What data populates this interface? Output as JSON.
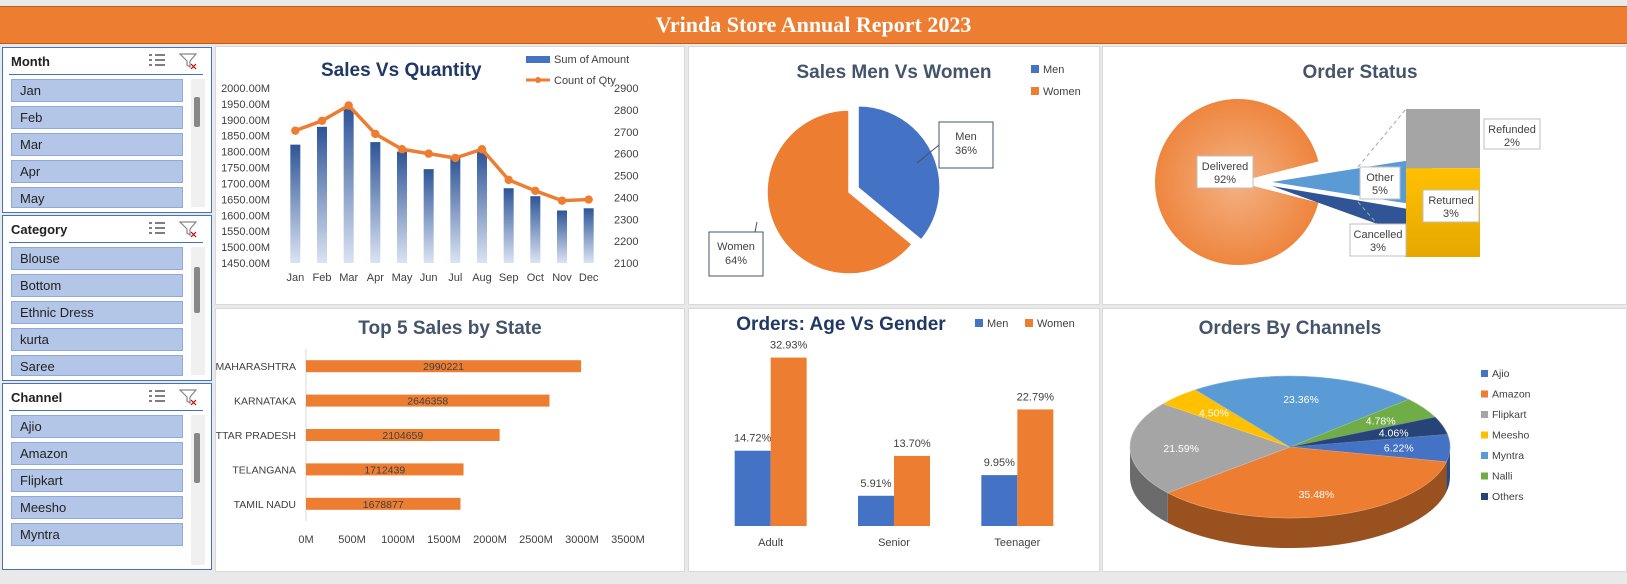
{
  "banner": {
    "title": "Vrinda Store Annual Report 2023"
  },
  "slicers": {
    "month": {
      "title": "Month",
      "items": [
        "Jan",
        "Feb",
        "Mar",
        "Apr",
        "May"
      ]
    },
    "category": {
      "title": "Category",
      "items": [
        "Blouse",
        "Bottom",
        "Ethnic Dress",
        "kurta",
        "Saree"
      ]
    },
    "channel": {
      "title": "Channel",
      "items": [
        "Ajio",
        "Amazon",
        "Flipkart",
        "Meesho",
        "Myntra"
      ]
    }
  },
  "charts": {
    "sales_qty": {
      "title": "Sales Vs Quantity",
      "legend": [
        "Sum of Amount",
        "Count of Qty"
      ]
    },
    "men_women": {
      "title": "Sales Men Vs Women",
      "legend": [
        "Men",
        "Women"
      ]
    },
    "order_status": {
      "title": "Order Status"
    },
    "top_states": {
      "title": "Top 5 Sales by State"
    },
    "age_gender": {
      "title": "Orders: Age Vs Gender",
      "legend": [
        "Men",
        "Women"
      ]
    },
    "channels": {
      "title": "Orders By Channels"
    }
  },
  "colors": {
    "blue": "#4472c4",
    "orange": "#ed7d31",
    "gray": "#a5a5a5",
    "gold": "#ffc000",
    "lightblue": "#5b9bd5",
    "green": "#70ad47",
    "navy": "#264478"
  },
  "chart_data": [
    {
      "type": "bar+line",
      "title": "Sales Vs Quantity",
      "categories": [
        "Jan",
        "Feb",
        "Mar",
        "Apr",
        "May",
        "Jun",
        "Jul",
        "Aug",
        "Sep",
        "Oct",
        "Nov",
        "Dec"
      ],
      "series": [
        {
          "name": "Sum of Amount",
          "type": "bar",
          "axis": "left",
          "values": [
            1822,
            1878,
            1935,
            1830,
            1800,
            1745,
            1780,
            1800,
            1685,
            1660,
            1615,
            1622
          ]
        },
        {
          "name": "Count of Qty",
          "type": "line",
          "axis": "right",
          "values": [
            2705,
            2750,
            2820,
            2690,
            2620,
            2600,
            2580,
            2620,
            2480,
            2430,
            2385,
            2390
          ]
        }
      ],
      "yticks_left": [
        "1450.00M",
        "1500.00M",
        "1550.00M",
        "1600.00M",
        "1650.00M",
        "1700.00M",
        "1750.00M",
        "1800.00M",
        "1850.00M",
        "1900.00M",
        "1950.00M",
        "2000.00M"
      ],
      "ylim_left": [
        1450,
        2000
      ],
      "yticks_right": [
        "2100",
        "2200",
        "2300",
        "2400",
        "2500",
        "2600",
        "2700",
        "2800",
        "2900"
      ],
      "ylim_right": [
        2100,
        2900
      ]
    },
    {
      "type": "pie",
      "title": "Sales Men Vs Women",
      "labels": [
        "Men",
        "Women"
      ],
      "values": [
        36,
        64
      ],
      "data_labels": [
        [
          "Men",
          "36%"
        ],
        [
          "Women",
          "64%"
        ]
      ]
    },
    {
      "type": "pie-of-bar",
      "title": "Order Status",
      "labels": [
        "Delivered",
        "Other",
        "Cancelled",
        "Returned",
        "Refunded"
      ],
      "values": [
        92,
        5,
        3,
        3,
        2
      ],
      "data_labels": [
        [
          "Delivered",
          "92%"
        ],
        [
          "Other",
          "5%"
        ],
        [
          "Cancelled",
          "3%"
        ],
        [
          "Returned",
          "3%"
        ],
        [
          "Refunded",
          "2%"
        ]
      ]
    },
    {
      "type": "bar",
      "orientation": "horizontal",
      "title": "Top 5 Sales by State",
      "categories": [
        "MAHARASHTRA",
        "KARNATAKA",
        "UTTAR PRADESH",
        "TELANGANA",
        "TAMIL NADU"
      ],
      "values": [
        2990221,
        2646358,
        2104659,
        1712439,
        1678877
      ],
      "value_labels": [
        "2990221",
        "2646358",
        "2104659",
        "1712439",
        "1678877"
      ],
      "xticks": [
        "0M",
        "500M",
        "1000M",
        "1500M",
        "2000M",
        "2500M",
        "3000M",
        "3500M"
      ],
      "xlim": [
        0,
        3500000
      ]
    },
    {
      "type": "bar",
      "title": "Orders: Age Vs Gender",
      "categories": [
        "Adult",
        "Senior",
        "Teenager"
      ],
      "series": [
        {
          "name": "Men",
          "values": [
            14.72,
            5.91,
            9.95
          ],
          "labels": [
            "14.72%",
            "5.91%",
            "9.95%"
          ]
        },
        {
          "name": "Women",
          "values": [
            32.93,
            13.7,
            22.79
          ],
          "labels": [
            "32.93%",
            "13.70%",
            "22.79%"
          ]
        }
      ]
    },
    {
      "type": "pie",
      "title": "Orders By Channels",
      "labels": [
        "Ajio",
        "Amazon",
        "Flipkart",
        "Meesho",
        "Myntra",
        "Nalli",
        "Others"
      ],
      "values": [
        6.22,
        35.48,
        21.59,
        4.5,
        23.36,
        4.78,
        4.06
      ],
      "data_labels": [
        "6.22%",
        "35.48%",
        "21.59%",
        "4.50%",
        "23.36%",
        "4.78%",
        "4.06%"
      ],
      "legend": "right"
    }
  ]
}
